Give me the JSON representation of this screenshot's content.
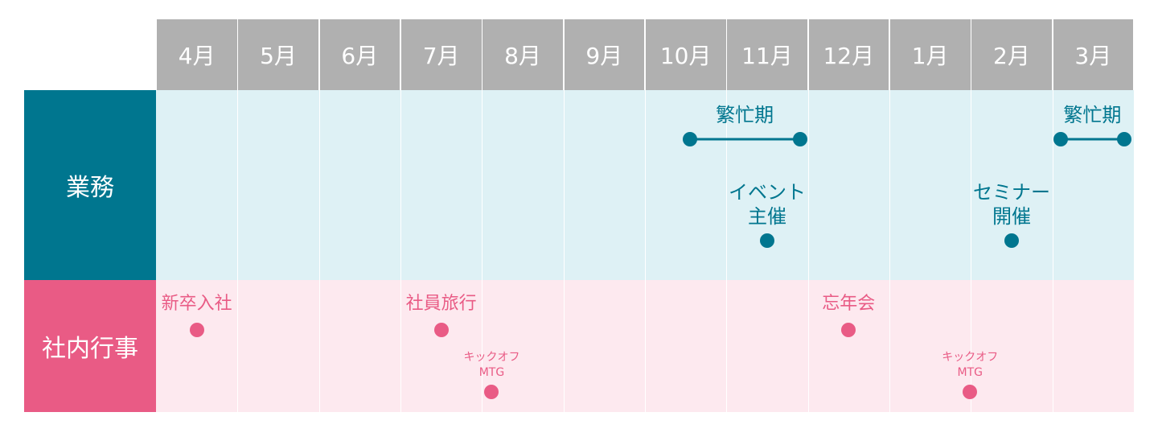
{
  "colors": {
    "header_bg": "#b0b0b0",
    "gyomu_label_bg": "#00768f",
    "gyomu_band_bg": "#def1f5",
    "gyomu_accent": "#00768f",
    "shanai_label_bg": "#e95b85",
    "shanai_band_bg": "#fde9ef",
    "shanai_accent": "#e95b85"
  },
  "months": [
    "4月",
    "5月",
    "6月",
    "7月",
    "8月",
    "9月",
    "10月",
    "11月",
    "12月",
    "1月",
    "2月",
    "3月"
  ],
  "rows": {
    "gyomu": {
      "label": "業務"
    },
    "shanai": {
      "label": "社内行事"
    }
  },
  "events": {
    "gyomu": [
      {
        "type": "range",
        "label": "繁忙期",
        "start": 6.55,
        "end": 7.9
      },
      {
        "type": "range",
        "label": "繁忙期",
        "start": 11.1,
        "end": 11.9
      },
      {
        "type": "point",
        "label_lines": [
          "イベント",
          "主催"
        ],
        "at": 7.5
      },
      {
        "type": "point",
        "label_lines": [
          "セミナー",
          "開催"
        ],
        "at": 10.5
      }
    ],
    "shanai": [
      {
        "type": "point",
        "size": "large",
        "label_lines": [
          "新卒入社"
        ],
        "at": 0.5
      },
      {
        "type": "point",
        "size": "large",
        "label_lines": [
          "社員旅行"
        ],
        "at": 3.5
      },
      {
        "type": "point",
        "size": "large",
        "label_lines": [
          "忘年会"
        ],
        "at": 8.5
      },
      {
        "type": "point",
        "size": "small",
        "label_lines": [
          "キックオフ",
          "MTG"
        ],
        "at": 4.12
      },
      {
        "type": "point",
        "size": "small",
        "label_lines": [
          "キックオフ",
          "MTG"
        ],
        "at": 9.99
      }
    ]
  }
}
